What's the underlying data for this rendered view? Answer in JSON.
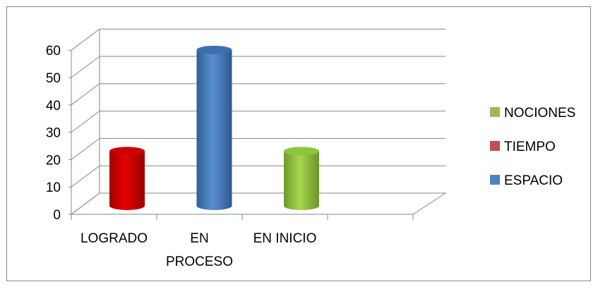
{
  "chart_data": {
    "type": "bar",
    "categories": [
      "LOGRADO",
      "EN PROCESO",
      "EN INICIO"
    ],
    "category_label_lines": [
      [
        "LOGRADO"
      ],
      [
        "EN",
        "PROCESO"
      ],
      [
        "EN INICIO"
      ]
    ],
    "series": [
      {
        "name": "ESPACIO",
        "color": "#4f81bd",
        "values": [
          0,
          57,
          0
        ]
      },
      {
        "name": "TIEMPO",
        "color": "#c0504d",
        "values": [
          20,
          0,
          0
        ]
      },
      {
        "name": "NOCIONES",
        "color": "#9bbb59",
        "values": [
          0,
          0,
          20
        ]
      }
    ],
    "legend_order": [
      "NOCIONES",
      "TIEMPO",
      "ESPACIO"
    ],
    "yticks": [
      0,
      10,
      20,
      30,
      40,
      50,
      60
    ],
    "ylim": [
      0,
      60
    ],
    "style": "3d-cylinder",
    "grid": true,
    "legend_position": "right"
  }
}
